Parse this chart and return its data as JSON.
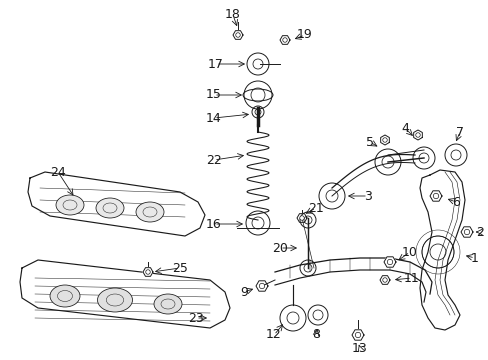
{
  "bg_color": "#ffffff",
  "figsize": [
    4.89,
    3.6
  ],
  "dpi": 100,
  "image_data": ""
}
